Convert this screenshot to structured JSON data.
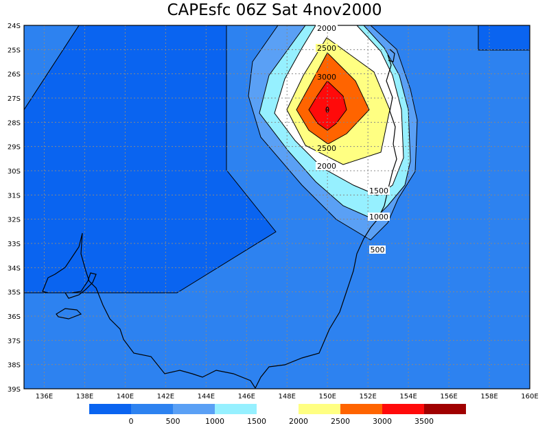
{
  "title": "CAPEsfc 06Z Sat 4nov2000",
  "map": {
    "lon_ticks": [
      "136E",
      "138E",
      "140E",
      "142E",
      "144E",
      "146E",
      "148E",
      "150E",
      "152E",
      "154E",
      "156E",
      "158E",
      "160E"
    ],
    "lat_ticks": [
      "24S",
      "25S",
      "26S",
      "27S",
      "28S",
      "29S",
      "30S",
      "31S",
      "32S",
      "33S",
      "34S",
      "35S",
      "36S",
      "37S",
      "38S",
      "39S"
    ],
    "contour_labels": [
      "2000",
      "2500",
      "3000",
      "2500",
      "2000",
      "1500",
      "1000",
      "500"
    ]
  },
  "colorbar": {
    "labels": [
      "0",
      "500",
      "1000",
      "1500",
      "2000",
      "2500",
      "3000",
      "3500"
    ],
    "colors": [
      "#0a64f0",
      "#2d82f0",
      "#5aa0f5",
      "#96f0ff",
      "#ffffff",
      "#ffff82",
      "#ff6400",
      "#ff0a0a",
      "#a00000"
    ]
  },
  "colors": {
    "deep_blue": "#0a64f0",
    "mid_blue": "#2d82f0",
    "light_blue": "#5aa0f5",
    "cyan": "#96f0ff",
    "white": "#ffffff",
    "yellow": "#ffff82",
    "orange": "#ff6400",
    "red": "#ff0a0a",
    "dark_red": "#a00000"
  }
}
